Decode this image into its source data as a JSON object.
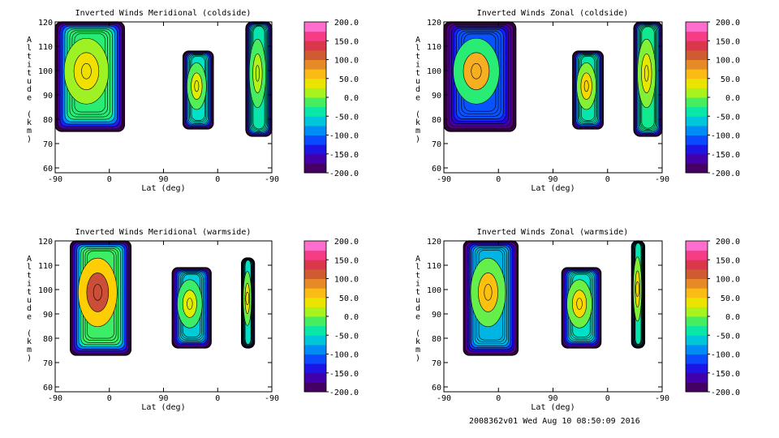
{
  "footer": "2008362v01 Wed Aug 10 08:50:09 2016",
  "chart_data": [
    {
      "type": "heatmap",
      "title": "Inverted Winds Meridional (coldside)",
      "xlabel": "Lat (deg)",
      "ylabel": "Altitude (km)",
      "xtick_labels": [
        "-90",
        "0",
        "90",
        "0",
        "-90"
      ],
      "yticks": [
        60,
        70,
        80,
        90,
        100,
        110,
        120
      ],
      "ylim": [
        58,
        120
      ],
      "colorbar_ticks": [
        "200.0",
        "150.0",
        "100.0",
        "50.0",
        "0.0",
        "-50.0",
        "-100.0",
        "-150.0",
        "-200.0"
      ],
      "colorbar_range": [
        -200,
        200
      ],
      "regions": [
        {
          "x": [
            0.0,
            0.32
          ],
          "y": [
            75,
            120
          ],
          "peak": 40,
          "base": -20,
          "rounded_bottom": true
        },
        {
          "x": [
            0.59,
            0.73
          ],
          "y": [
            76,
            108
          ],
          "peak": 30,
          "base": -50,
          "rounded_bottom": false
        },
        {
          "x": [
            0.88,
            1.0
          ],
          "y": [
            73,
            120
          ],
          "peak": 15,
          "base": -40,
          "rounded_bottom": true
        }
      ]
    },
    {
      "type": "heatmap",
      "title": "Inverted Winds Zonal (coldside)",
      "xlabel": "Lat (deg)",
      "ylabel": "Altitude (km)",
      "xtick_labels": [
        "-90",
        "0",
        "90",
        "0",
        "-90"
      ],
      "yticks": [
        60,
        70,
        80,
        90,
        100,
        110,
        120
      ],
      "ylim": [
        58,
        120
      ],
      "colorbar_ticks": [
        "200.0",
        "150.0",
        "100.0",
        "50.0",
        "0.0",
        "-50.0",
        "-100.0",
        "-150.0",
        "-200.0"
      ],
      "colorbar_range": [
        -200,
        200
      ],
      "regions": [
        {
          "x": [
            0.0,
            0.33
          ],
          "y": [
            75,
            120
          ],
          "peak": 70,
          "base": -110,
          "rounded_bottom": true
        },
        {
          "x": [
            0.59,
            0.73
          ],
          "y": [
            76,
            108
          ],
          "peak": 45,
          "base": -40,
          "rounded_bottom": false
        },
        {
          "x": [
            0.87,
            1.0
          ],
          "y": [
            73,
            120
          ],
          "peak": 35,
          "base": -30,
          "rounded_bottom": true
        }
      ]
    },
    {
      "type": "heatmap",
      "title": "Inverted Winds Meridional (warmside)",
      "xlabel": "Lat (deg)",
      "ylabel": "Altitude (km)",
      "xtick_labels": [
        "-90",
        "0",
        "90",
        "0",
        "-90"
      ],
      "yticks": [
        60,
        70,
        80,
        90,
        100,
        110,
        120
      ],
      "ylim": [
        58,
        120
      ],
      "colorbar_ticks": [
        "200.0",
        "150.0",
        "100.0",
        "50.0",
        "0.0",
        "-50.0",
        "-100.0",
        "-150.0",
        "-200.0"
      ],
      "colorbar_range": [
        -200,
        200
      ],
      "regions": [
        {
          "x": [
            0.07,
            0.35
          ],
          "y": [
            73,
            120
          ],
          "peak": 120,
          "base": -15,
          "rounded_bottom": false
        },
        {
          "x": [
            0.54,
            0.72
          ],
          "y": [
            76,
            109
          ],
          "peak": 30,
          "base": -60,
          "rounded_bottom": false
        },
        {
          "x": [
            0.86,
            0.92
          ],
          "y": [
            76,
            113
          ],
          "peak": 40,
          "base": -50,
          "rounded_bottom": false
        }
      ]
    },
    {
      "type": "heatmap",
      "title": "Inverted Winds Zonal (warmside)",
      "xlabel": "Lat (deg)",
      "ylabel": "Altitude (km)",
      "xtick_labels": [
        "-90",
        "0",
        "90",
        "0",
        "-90"
      ],
      "yticks": [
        60,
        70,
        80,
        90,
        100,
        110,
        120
      ],
      "ylim": [
        58,
        120
      ],
      "colorbar_ticks": [
        "200.0",
        "150.0",
        "100.0",
        "50.0",
        "0.0",
        "-50.0",
        "-100.0",
        "-150.0",
        "-200.0"
      ],
      "colorbar_range": [
        -200,
        200
      ],
      "regions": [
        {
          "x": [
            0.09,
            0.34
          ],
          "y": [
            73,
            120
          ],
          "peak": 60,
          "base": -70,
          "rounded_bottom": false
        },
        {
          "x": [
            0.54,
            0.72
          ],
          "y": [
            76,
            109
          ],
          "peak": 45,
          "base": -50,
          "rounded_bottom": false
        },
        {
          "x": [
            0.86,
            0.92
          ],
          "y": [
            76,
            120
          ],
          "peak": 45,
          "base": -40,
          "rounded_bottom": false
        }
      ]
    }
  ]
}
